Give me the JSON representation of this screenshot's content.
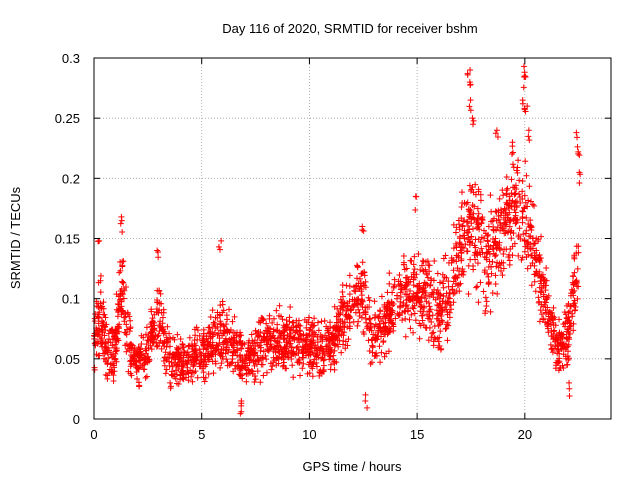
{
  "chart_data": {
    "type": "scatter",
    "title": "Day 116 of 2020, SRMTID for receiver bshm",
    "xlabel": "GPS time / hours",
    "ylabel": "SRMTID / TECUs",
    "xlim": [
      0,
      24
    ],
    "ylim": [
      0,
      0.3
    ],
    "xticks": [
      0,
      5,
      10,
      15,
      20
    ],
    "xtick_labels": [
      "0",
      "5",
      "10",
      "15",
      "20"
    ],
    "yticks": [
      0,
      0.05,
      0.1,
      0.15,
      0.2,
      0.25,
      0.3
    ],
    "ytick_labels": [
      "0",
      "0.05",
      "0.1",
      "0.15",
      "0.2",
      "0.25",
      "0.3"
    ],
    "grid": true,
    "marker": "+",
    "series": [
      {
        "name": "SRMTID",
        "color": "#ff0000",
        "envelope": [
          {
            "x": 0.0,
            "mean": 0.065,
            "spread": 0.03
          },
          {
            "x": 0.3,
            "mean": 0.095,
            "spread": 0.04
          },
          {
            "x": 0.6,
            "mean": 0.05,
            "spread": 0.025
          },
          {
            "x": 1.0,
            "mean": 0.06,
            "spread": 0.03
          },
          {
            "x": 1.3,
            "mean": 0.11,
            "spread": 0.04
          },
          {
            "x": 1.6,
            "mean": 0.065,
            "spread": 0.03
          },
          {
            "x": 2.0,
            "mean": 0.045,
            "spread": 0.02
          },
          {
            "x": 2.5,
            "mean": 0.06,
            "spread": 0.025
          },
          {
            "x": 3.0,
            "mean": 0.085,
            "spread": 0.035
          },
          {
            "x": 3.5,
            "mean": 0.05,
            "spread": 0.025
          },
          {
            "x": 4.0,
            "mean": 0.045,
            "spread": 0.02
          },
          {
            "x": 5.0,
            "mean": 0.055,
            "spread": 0.025
          },
          {
            "x": 5.8,
            "mean": 0.07,
            "spread": 0.03
          },
          {
            "x": 6.5,
            "mean": 0.06,
            "spread": 0.025
          },
          {
            "x": 7.0,
            "mean": 0.05,
            "spread": 0.025
          },
          {
            "x": 8.0,
            "mean": 0.065,
            "spread": 0.025
          },
          {
            "x": 9.0,
            "mean": 0.065,
            "spread": 0.025
          },
          {
            "x": 10.0,
            "mean": 0.06,
            "spread": 0.025
          },
          {
            "x": 11.0,
            "mean": 0.06,
            "spread": 0.025
          },
          {
            "x": 11.7,
            "mean": 0.085,
            "spread": 0.035
          },
          {
            "x": 12.3,
            "mean": 0.11,
            "spread": 0.035
          },
          {
            "x": 13.0,
            "mean": 0.065,
            "spread": 0.03
          },
          {
            "x": 14.0,
            "mean": 0.1,
            "spread": 0.03
          },
          {
            "x": 15.0,
            "mean": 0.11,
            "spread": 0.04
          },
          {
            "x": 16.0,
            "mean": 0.085,
            "spread": 0.035
          },
          {
            "x": 16.8,
            "mean": 0.12,
            "spread": 0.04
          },
          {
            "x": 17.5,
            "mean": 0.17,
            "spread": 0.06
          },
          {
            "x": 18.2,
            "mean": 0.13,
            "spread": 0.045
          },
          {
            "x": 19.0,
            "mean": 0.16,
            "spread": 0.045
          },
          {
            "x": 19.8,
            "mean": 0.18,
            "spread": 0.05
          },
          {
            "x": 20.3,
            "mean": 0.15,
            "spread": 0.045
          },
          {
            "x": 21.0,
            "mean": 0.1,
            "spread": 0.03
          },
          {
            "x": 21.5,
            "mean": 0.055,
            "spread": 0.025
          },
          {
            "x": 22.0,
            "mean": 0.07,
            "spread": 0.03
          },
          {
            "x": 22.5,
            "mean": 0.13,
            "spread": 0.04
          }
        ],
        "peaks": [
          {
            "x": 0.2,
            "y": 0.148
          },
          {
            "x": 1.3,
            "y": 0.168
          },
          {
            "x": 2.95,
            "y": 0.14
          },
          {
            "x": 5.85,
            "y": 0.148
          },
          {
            "x": 12.5,
            "y": 0.16
          },
          {
            "x": 14.9,
            "y": 0.185
          },
          {
            "x": 17.4,
            "y": 0.29
          },
          {
            "x": 17.5,
            "y": 0.28
          },
          {
            "x": 17.45,
            "y": 0.265
          },
          {
            "x": 17.6,
            "y": 0.25
          },
          {
            "x": 18.7,
            "y": 0.24
          },
          {
            "x": 19.4,
            "y": 0.23
          },
          {
            "x": 19.95,
            "y": 0.293
          },
          {
            "x": 20.0,
            "y": 0.285
          },
          {
            "x": 19.95,
            "y": 0.265
          },
          {
            "x": 20.05,
            "y": 0.26
          },
          {
            "x": 20.2,
            "y": 0.24
          },
          {
            "x": 22.45,
            "y": 0.238
          },
          {
            "x": 22.5,
            "y": 0.222
          },
          {
            "x": 22.55,
            "y": 0.205
          },
          {
            "x": 6.85,
            "y": 0.006
          },
          {
            "x": 6.8,
            "y": 0.015
          },
          {
            "x": 12.65,
            "y": 0.02
          },
          {
            "x": 22.05,
            "y": 0.03
          }
        ]
      }
    ]
  }
}
